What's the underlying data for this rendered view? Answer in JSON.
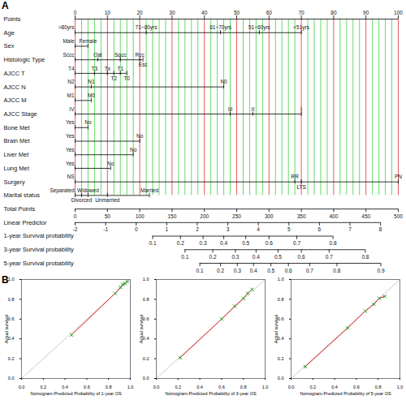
{
  "chart_data": [
    {
      "type": "nomogram",
      "panel": "A",
      "grid": true,
      "points": {
        "label": "Points",
        "xlim": [
          0,
          100
        ],
        "xticks": [
          0,
          10,
          20,
          30,
          40,
          50,
          60,
          70,
          80,
          90,
          100
        ]
      },
      "predictors": [
        {
          "label": "Age",
          "levels": [
            ">80yrs",
            "71~80yrs",
            "61~70yrs",
            "51~60yrs",
            "<51yrs"
          ],
          "values": [
            0,
            22,
            45,
            57,
            70
          ]
        },
        {
          "label": "Sex",
          "levels": [
            "Male",
            "Female"
          ],
          "values": [
            0,
            4
          ]
        },
        {
          "label": "Histologic Type",
          "levels": [
            "Sccc",
            "Oat",
            "Sqcc",
            "Rcc",
            "Esc"
          ],
          "values": [
            0,
            7,
            14,
            20,
            21
          ]
        },
        {
          "label": "AJCC T",
          "levels": [
            "T4",
            "T3",
            "Tx",
            "T2",
            "T1",
            "T0"
          ],
          "values": [
            0,
            6,
            10,
            12,
            14,
            16
          ]
        },
        {
          "label": "AJCC N",
          "levels": [
            "N2",
            "N1",
            "N0"
          ],
          "values": [
            0,
            5,
            46
          ]
        },
        {
          "label": "AJCC M",
          "levels": [
            "M1",
            "M0"
          ],
          "values": [
            0,
            5
          ]
        },
        {
          "label": "AJCC Stage",
          "levels": [
            "IV",
            "III",
            "II",
            "I"
          ],
          "values": [
            0,
            48,
            55,
            70
          ]
        },
        {
          "label": "Bone Met",
          "levels": [
            "Yes",
            "No"
          ],
          "values": [
            0,
            4
          ]
        },
        {
          "label": "Brain Met",
          "levels": [
            "Yes",
            "No"
          ],
          "values": [
            0,
            20
          ]
        },
        {
          "label": "Liver Met",
          "levels": [
            "Yes",
            "No"
          ],
          "values": [
            0,
            18
          ]
        },
        {
          "label": "Lung Met",
          "levels": [
            "Yes",
            "No"
          ],
          "values": [
            0,
            11
          ]
        },
        {
          "label": "Surgery",
          "levels": [
            "NS",
            "RR",
            "LTS",
            "PN"
          ],
          "values": [
            0,
            68,
            70,
            100
          ]
        },
        {
          "label": "Marital status",
          "levels": [
            "Separated",
            "Divorced",
            "Widowed",
            "Unmarried",
            "Married"
          ],
          "values": [
            0,
            2,
            4,
            10,
            23
          ]
        }
      ],
      "scales": [
        {
          "label": "Total Points",
          "xlim": [
            0,
            500
          ],
          "points_range": [
            0,
            100
          ],
          "xticks": [
            0,
            50,
            100,
            150,
            200,
            250,
            300,
            350,
            400,
            450,
            500
          ]
        },
        {
          "label": "Linear Predictor",
          "xlim": [
            -2,
            8
          ],
          "points_range": [
            0,
            94.5
          ],
          "xticks": [
            -2,
            -1,
            0,
            1,
            2,
            3,
            4,
            5,
            6,
            7,
            8
          ]
        },
        {
          "label": "1-year Survival probability",
          "xticks": [
            0.1,
            0.2,
            0.3,
            0.4,
            0.5,
            0.6,
            0.7,
            0.8
          ],
          "total_points": [
            120,
            163,
            198,
            230,
            264,
            300,
            343,
            399
          ]
        },
        {
          "label": "3-year Survival probability",
          "xticks": [
            0.1,
            0.2,
            0.3,
            0.4,
            0.5,
            0.6,
            0.7,
            0.8
          ],
          "total_points": [
            170,
            213,
            248,
            280,
            314,
            350,
            393,
            449
          ]
        },
        {
          "label": "5-year Survival probability",
          "xticks": [
            0.1,
            0.2,
            0.3,
            0.4,
            0.5,
            0.6,
            0.7,
            0.8,
            0.9
          ],
          "total_points": [
            193,
            225,
            251,
            276,
            303,
            330,
            363,
            405,
            473
          ]
        }
      ]
    },
    {
      "type": "calibration",
      "panel": "B",
      "xlabel": "Nomogram-Predicted Probability of 1-year OS",
      "ylabel": "Actual survival",
      "x": [
        0.46,
        0.86,
        0.91,
        0.93,
        0.95,
        0.97
      ],
      "values": [
        0.44,
        0.86,
        0.92,
        0.95,
        0.96,
        0.98
      ],
      "color": "#e41a1c",
      "marker": "times",
      "xlim": [
        0,
        1
      ],
      "ylim": [
        0,
        1
      ],
      "xticks": [
        {
          "value": 0,
          "label": "0.0"
        },
        0.2,
        0.4,
        0.6,
        0.8,
        {
          "value": 1,
          "label": "1.0"
        }
      ],
      "yticks": [
        {
          "value": 0,
          "label": "0.0"
        },
        0.2,
        0.4,
        0.6,
        0.8,
        {
          "value": 1,
          "label": "1.0"
        }
      ]
    },
    {
      "type": "calibration",
      "xlabel": "Nomogram-Predicted Probability of 3-year OS",
      "ylabel": "Actual survival",
      "x": [
        0.22,
        0.6,
        0.72,
        0.8,
        0.84,
        0.88
      ],
      "values": [
        0.21,
        0.6,
        0.73,
        0.81,
        0.86,
        0.9
      ],
      "color": "#e41a1c",
      "marker": "times",
      "xlim": [
        0,
        1
      ],
      "ylim": [
        0,
        1
      ],
      "xticks": [
        {
          "value": 0,
          "label": "0.0"
        },
        0.2,
        0.4,
        0.6,
        0.8,
        {
          "value": 1,
          "label": "1.0"
        }
      ],
      "yticks": [
        {
          "value": 0,
          "label": "0.0"
        },
        0.2,
        0.4,
        0.6,
        0.8,
        {
          "value": 1,
          "label": "1.0"
        }
      ]
    },
    {
      "type": "calibration",
      "xlabel": "Nomogram-Predicted Probability of 5-year OS",
      "ylabel": "Actual survival",
      "x": [
        0.13,
        0.52,
        0.68,
        0.76,
        0.81,
        0.86
      ],
      "values": [
        0.12,
        0.51,
        0.68,
        0.75,
        0.81,
        0.83
      ],
      "color": "#e41a1c",
      "marker": "times",
      "xlim": [
        0,
        1
      ],
      "ylim": [
        0,
        1
      ],
      "xticks": [
        {
          "value": 0,
          "label": "0.0"
        },
        0.2,
        0.4,
        0.6,
        0.8,
        {
          "value": 1,
          "label": "1.0"
        }
      ],
      "yticks": [
        {
          "value": 0,
          "label": "0.0"
        },
        0.2,
        0.4,
        0.6,
        0.8,
        {
          "value": 1,
          "label": "1.0"
        }
      ]
    }
  ]
}
